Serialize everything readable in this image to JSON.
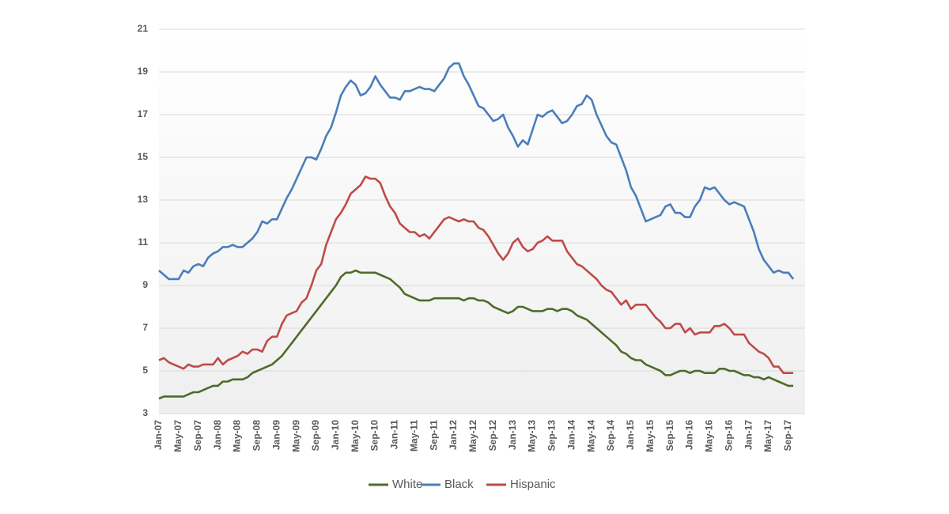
{
  "chart_data": {
    "type": "line",
    "categories": [
      "Jan-07",
      null,
      null,
      null,
      "May-07",
      null,
      null,
      null,
      "Sep-07",
      null,
      null,
      null,
      "Jan-08",
      null,
      null,
      null,
      "May-08",
      null,
      null,
      null,
      "Sep-08",
      null,
      null,
      null,
      "Jan-09",
      null,
      null,
      null,
      "May-09",
      null,
      null,
      null,
      "Sep-09",
      null,
      null,
      null,
      "Jan-10",
      null,
      null,
      null,
      "May-10",
      null,
      null,
      null,
      "Sep-10",
      null,
      null,
      null,
      "Jan-11",
      null,
      null,
      null,
      "May-11",
      null,
      null,
      null,
      "Sep-11",
      null,
      null,
      null,
      "Jan-12",
      null,
      null,
      null,
      "May-12",
      null,
      null,
      null,
      "Sep-12",
      null,
      null,
      null,
      "Jan-13",
      null,
      null,
      null,
      "May-13",
      null,
      null,
      null,
      "Sep-13",
      null,
      null,
      null,
      "Jan-14",
      null,
      null,
      null,
      "May-14",
      null,
      null,
      null,
      "Sep-14",
      null,
      null,
      null,
      "Jan-15",
      null,
      null,
      null,
      "May-15",
      null,
      null,
      null,
      "Sep-15",
      null,
      null,
      null,
      "Jan-16",
      null,
      null,
      null,
      "May-16",
      null,
      null,
      null,
      "Sep-16",
      null,
      null,
      null,
      "Jan-17",
      null,
      null,
      null,
      "May-17",
      null,
      null,
      null,
      "Sep-17",
      null
    ],
    "series": [
      {
        "name": "White",
        "color": "#4f6b2a",
        "values": [
          3.7,
          3.8,
          3.8,
          3.8,
          3.8,
          3.8,
          3.9,
          4.0,
          4.0,
          4.1,
          4.2,
          4.3,
          4.3,
          4.5,
          4.5,
          4.6,
          4.6,
          4.6,
          4.7,
          4.9,
          5.0,
          5.1,
          5.2,
          5.3,
          5.5,
          5.7,
          6.0,
          6.3,
          6.6,
          6.9,
          7.2,
          7.5,
          7.8,
          8.1,
          8.4,
          8.7,
          9.0,
          9.4,
          9.6,
          9.6,
          9.7,
          9.6,
          9.6,
          9.6,
          9.6,
          9.5,
          9.4,
          9.3,
          9.1,
          8.9,
          8.6,
          8.5,
          8.4,
          8.3,
          8.3,
          8.3,
          8.4,
          8.4,
          8.4,
          8.4,
          8.4,
          8.4,
          8.3,
          8.4,
          8.4,
          8.3,
          8.3,
          8.2,
          8.0,
          7.9,
          7.8,
          7.7,
          7.8,
          8.0,
          8.0,
          7.9,
          7.8,
          7.8,
          7.8,
          7.9,
          7.9,
          7.8,
          7.9,
          7.9,
          7.8,
          7.6,
          7.5,
          7.4,
          7.2,
          7.0,
          6.8,
          6.6,
          6.4,
          6.2,
          5.9,
          5.8,
          5.6,
          5.5,
          5.5,
          5.3,
          5.2,
          5.1,
          5.0,
          4.8,
          4.8,
          4.9,
          5.0,
          5.0,
          4.9,
          5.0,
          5.0,
          4.9,
          4.9,
          4.9,
          5.1,
          5.1,
          5.0,
          5.0,
          4.9,
          4.8,
          4.8,
          4.7,
          4.7,
          4.6,
          4.7,
          4.6,
          4.5,
          4.4,
          4.3,
          4.3
        ]
      },
      {
        "name": "Black",
        "color": "#4a7ebb",
        "values": [
          9.7,
          9.5,
          9.3,
          9.3,
          9.3,
          9.7,
          9.6,
          9.9,
          10.0,
          9.9,
          10.3,
          10.5,
          10.6,
          10.8,
          10.8,
          10.9,
          10.8,
          10.8,
          11.0,
          11.2,
          11.5,
          12.0,
          11.9,
          12.1,
          12.1,
          12.6,
          13.1,
          13.5,
          14.0,
          14.5,
          15.0,
          15.0,
          14.9,
          15.4,
          16.0,
          16.4,
          17.1,
          17.9,
          18.3,
          18.6,
          18.4,
          17.9,
          18.0,
          18.3,
          18.8,
          18.4,
          18.1,
          17.8,
          17.8,
          17.7,
          18.1,
          18.1,
          18.2,
          18.3,
          18.2,
          18.2,
          18.1,
          18.4,
          18.7,
          19.2,
          19.4,
          19.4,
          18.8,
          18.4,
          17.9,
          17.4,
          17.3,
          17.0,
          16.7,
          16.8,
          17.0,
          16.4,
          16.0,
          15.5,
          15.8,
          15.6,
          16.3,
          17.0,
          16.9,
          17.1,
          17.2,
          16.9,
          16.6,
          16.7,
          17.0,
          17.4,
          17.5,
          17.9,
          17.7,
          17.0,
          16.5,
          16.0,
          15.7,
          15.6,
          15.0,
          14.4,
          13.6,
          13.2,
          12.6,
          12.0,
          12.1,
          12.2,
          12.3,
          12.7,
          12.8,
          12.4,
          12.4,
          12.2,
          12.2,
          12.7,
          13.0,
          13.6,
          13.5,
          13.6,
          13.3,
          13.0,
          12.8,
          12.9,
          12.8,
          12.7,
          12.1,
          11.5,
          10.7,
          10.2,
          9.9,
          9.6,
          9.7,
          9.6,
          9.6,
          9.3
        ]
      },
      {
        "name": "Hispanic",
        "color": "#be4b48",
        "values": [
          5.5,
          5.6,
          5.4,
          5.3,
          5.2,
          5.1,
          5.3,
          5.2,
          5.2,
          5.3,
          5.3,
          5.3,
          5.6,
          5.3,
          5.5,
          5.6,
          5.7,
          5.9,
          5.8,
          6.0,
          6.0,
          5.9,
          6.4,
          6.6,
          6.6,
          7.2,
          7.6,
          7.7,
          7.8,
          8.2,
          8.4,
          9.0,
          9.7,
          10.0,
          10.9,
          11.5,
          12.1,
          12.4,
          12.8,
          13.3,
          13.5,
          13.7,
          14.1,
          14.0,
          14.0,
          13.8,
          13.2,
          12.7,
          12.4,
          11.9,
          11.7,
          11.5,
          11.5,
          11.3,
          11.4,
          11.2,
          11.5,
          11.8,
          12.1,
          12.2,
          12.1,
          12.0,
          12.1,
          12.0,
          12.0,
          11.7,
          11.6,
          11.3,
          10.9,
          10.5,
          10.2,
          10.5,
          11.0,
          11.2,
          10.8,
          10.6,
          10.7,
          11.0,
          11.1,
          11.3,
          11.1,
          11.1,
          11.1,
          10.6,
          10.3,
          10.0,
          9.9,
          9.7,
          9.5,
          9.3,
          9.0,
          8.8,
          8.7,
          8.4,
          8.1,
          8.3,
          7.9,
          8.1,
          8.1,
          8.1,
          7.8,
          7.5,
          7.3,
          7.0,
          7.0,
          7.2,
          7.2,
          6.8,
          7.0,
          6.7,
          6.8,
          6.8,
          6.8,
          7.1,
          7.1,
          7.2,
          7.0,
          6.7,
          6.7,
          6.7,
          6.3,
          6.1,
          5.9,
          5.8,
          5.6,
          5.2,
          5.2,
          4.9,
          4.9,
          4.9
        ]
      }
    ],
    "ylim": [
      3,
      21
    ],
    "yticks": [
      3,
      5,
      7,
      9,
      11,
      13,
      15,
      17,
      19,
      21
    ],
    "grid": true,
    "legend": "bottom"
  }
}
